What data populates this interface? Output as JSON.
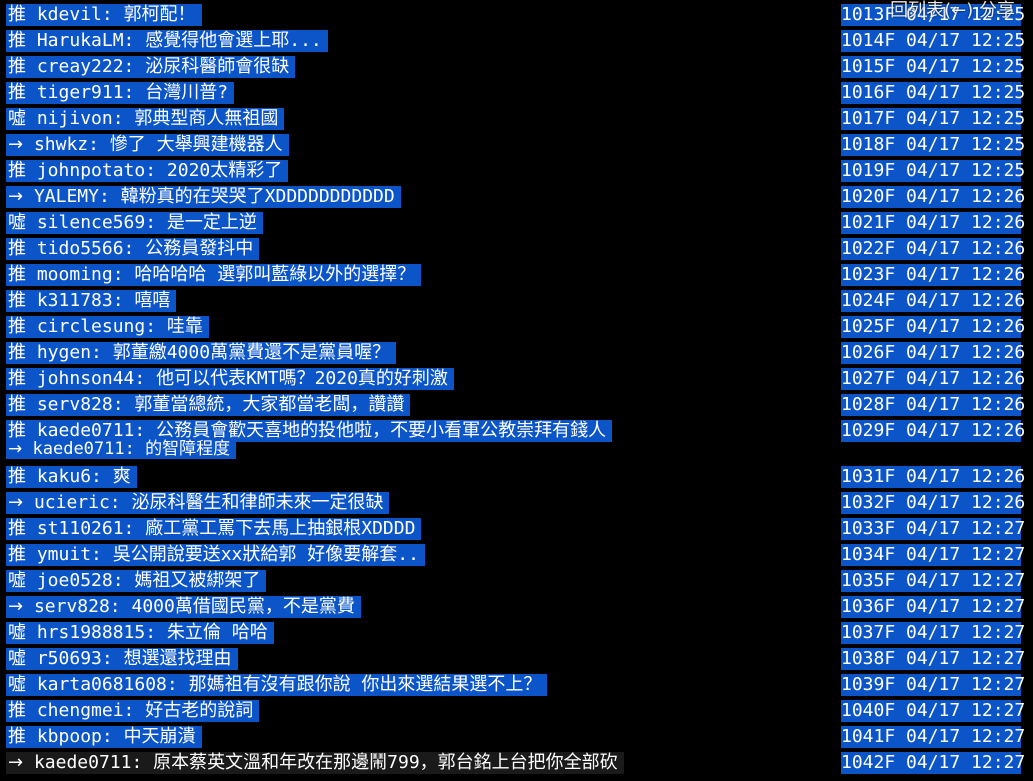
{
  "overlay_hint": "回列表(←) 分享",
  "rows": [
    {
      "tag": "推",
      "user": "kdevil",
      "text": "郭柯配！",
      "meta": "1013F 04/17 12:25"
    },
    {
      "tag": "推",
      "user": "HarukaLM",
      "text": "感覺得他會選上耶...",
      "meta": "1014F 04/17 12:25"
    },
    {
      "tag": "推",
      "user": "creay222",
      "text": "泌尿科醫師會很缺",
      "meta": "1015F 04/17 12:25"
    },
    {
      "tag": "推",
      "user": "tiger911",
      "text": "台灣川普?",
      "meta": "1016F 04/17 12:25"
    },
    {
      "tag": "噓",
      "user": "nijivon",
      "text": "郭典型商人無祖國",
      "meta": "1017F 04/17 12:25"
    },
    {
      "tag": "→",
      "user": "shwkz",
      "text": "慘了 大舉興建機器人",
      "meta": "1018F 04/17 12:25"
    },
    {
      "tag": "推",
      "user": "johnpotato",
      "text": "2020太精彩了",
      "meta": "1019F 04/17 12:25"
    },
    {
      "tag": "→",
      "user": "YALEMY",
      "text": "韓粉真的在哭哭了XDDDDDDDDDDD",
      "meta": "1020F 04/17 12:26"
    },
    {
      "tag": "噓",
      "user": "silence569",
      "text": "是一定上逆",
      "meta": "1021F 04/17 12:26"
    },
    {
      "tag": "推",
      "user": "tido5566",
      "text": "公務員發抖中",
      "meta": "1022F 04/17 12:26"
    },
    {
      "tag": "推",
      "user": "mooming",
      "text": "哈哈哈哈 選郭叫藍綠以外的選擇？",
      "meta": "1023F 04/17 12:26"
    },
    {
      "tag": "推",
      "user": "k311783",
      "text": "嘻嘻",
      "meta": "1024F 04/17 12:26"
    },
    {
      "tag": "推",
      "user": "circlesung",
      "text": "哇靠",
      "meta": "1025F 04/17 12:26"
    },
    {
      "tag": "推",
      "user": "hygen",
      "text": "郭董繳4000萬黨費還不是黨員喔？",
      "meta": "1026F 04/17 12:26"
    },
    {
      "tag": "推",
      "user": "johnson44",
      "text": "他可以代表KMT嗎？2020真的好刺激",
      "meta": "1027F 04/17 12:26"
    },
    {
      "tag": "推",
      "user": "serv828",
      "text": "郭董當總統，大家都當老闆，讚讚",
      "meta": "1028F 04/17 12:26"
    },
    {
      "tag": "推",
      "user": "kaede0711",
      "text": "公務員會歡天喜地的投他啦，不要小看軍公教崇拜有錢人",
      "meta": "1029F 04/17 12:26"
    },
    {
      "tag": "→",
      "user": "kaede0711",
      "text": "的智障程度",
      "meta": ""
    },
    {
      "tag": "推",
      "user": "kaku6",
      "text": "爽",
      "meta": "1031F 04/17 12:26"
    },
    {
      "tag": "→",
      "user": "ucieric",
      "text": "泌尿科醫生和律師未來一定很缺",
      "meta": "1032F 04/17 12:26"
    },
    {
      "tag": "推",
      "user": "st110261",
      "text": "廠工黨工罵下去馬上抽銀根XDDDD",
      "meta": "1033F 04/17 12:27"
    },
    {
      "tag": "推",
      "user": "ymuit",
      "text": "吳公開說要送xx狀給郭 好像要解套..",
      "meta": "1034F 04/17 12:27"
    },
    {
      "tag": "噓",
      "user": "joe0528",
      "text": "媽祖又被綁架了",
      "meta": "1035F 04/17 12:27"
    },
    {
      "tag": "→",
      "user": "serv828",
      "text": "4000萬借國民黨，不是黨費",
      "meta": "1036F 04/17 12:27"
    },
    {
      "tag": "噓",
      "user": "hrs1988815",
      "text": "朱立倫 哈哈",
      "meta": "1037F 04/17 12:27"
    },
    {
      "tag": "噓",
      "user": "r50693",
      "text": "想選還找理由",
      "meta": "1038F 04/17 12:27"
    },
    {
      "tag": "噓",
      "user": "karta0681608",
      "text": "那媽祖有沒有跟你說 你出來選結果選不上？",
      "meta": "1039F 04/17 12:27"
    },
    {
      "tag": "推",
      "user": "chengmei",
      "text": "好古老的說詞",
      "meta": "1040F 04/17 12:27"
    },
    {
      "tag": "推",
      "user": "kbpoop",
      "text": "中天崩潰",
      "meta": "1041F 04/17 12:27"
    },
    {
      "tag": "→",
      "user": "kaede0711",
      "text": "原本蔡英文溫和年改在那邊鬧799，郭台銘上台把你全部砍",
      "meta": "1042F 04/17 12:27"
    }
  ],
  "colors": {
    "highlight": "#0b55c8",
    "background": "#000000",
    "text": "#ffffff"
  }
}
